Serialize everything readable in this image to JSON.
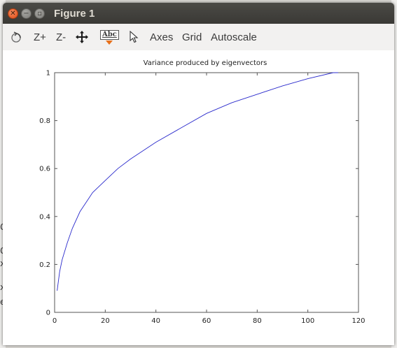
{
  "window": {
    "title": "Figure 1"
  },
  "background": {
    "left_glyphs": [
      "C",
      "C",
      "x",
      "x",
      "e"
    ]
  },
  "toolbar": {
    "zoom_in_label": "Z+",
    "zoom_out_label": "Z-",
    "text_tool_label": "Abc",
    "axes_label": "Axes",
    "grid_label": "Grid",
    "autoscale_label": "Autoscale",
    "icons": [
      "rotate-icon",
      "pan-icon",
      "text-insert-icon",
      "select-pointer-icon"
    ]
  },
  "chart_data": {
    "type": "line",
    "title": "Variance produced by eigenvectors",
    "xlabel": "",
    "ylabel": "",
    "xlim": [
      0,
      120
    ],
    "ylim": [
      0,
      1
    ],
    "xticks": [
      0,
      20,
      40,
      60,
      80,
      100,
      120
    ],
    "yticks": [
      0,
      0.2,
      0.4,
      0.6,
      0.8,
      1
    ],
    "grid": false,
    "series_color": "#2a2acc",
    "series": [
      {
        "x": [
          1,
          2,
          3,
          5,
          7,
          10,
          15,
          20,
          25,
          30,
          40,
          50,
          60,
          70,
          80,
          90,
          100,
          110,
          112
        ],
        "y": [
          0.09,
          0.17,
          0.22,
          0.29,
          0.35,
          0.42,
          0.5,
          0.55,
          0.6,
          0.64,
          0.71,
          0.77,
          0.83,
          0.875,
          0.91,
          0.945,
          0.975,
          1.0,
          1.0
        ]
      }
    ]
  }
}
